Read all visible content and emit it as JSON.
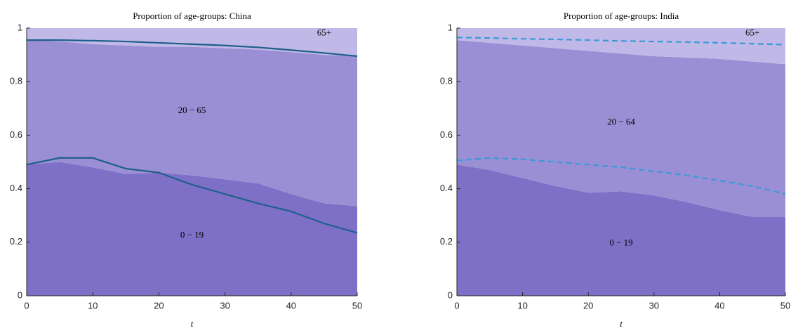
{
  "chart_data": [
    {
      "type": "stacked-area",
      "title": "Proportion of age-groups: China",
      "x_label": "t",
      "x": [
        0,
        5,
        10,
        15,
        20,
        25,
        30,
        35,
        40,
        45,
        50
      ],
      "series": [
        {
          "name": "0 − 19",
          "color": "#7e70c6",
          "values": [
            0.49,
            0.5,
            0.48,
            0.455,
            0.46,
            0.45,
            0.435,
            0.42,
            0.38,
            0.345,
            0.335
          ]
        },
        {
          "name": "20 − 65",
          "color": "#9a8fd4",
          "values": [
            0.465,
            0.45,
            0.46,
            0.48,
            0.47,
            0.48,
            0.49,
            0.5,
            0.53,
            0.555,
            0.56
          ]
        },
        {
          "name": "65+",
          "color": "#c0b8e6",
          "values": [
            0.045,
            0.05,
            0.06,
            0.065,
            0.07,
            0.07,
            0.075,
            0.08,
            0.09,
            0.1,
            0.105
          ]
        }
      ],
      "lines": [
        {
          "color": "#1f5f8b",
          "dashed": false,
          "values": [
            0.955,
            0.955,
            0.953,
            0.95,
            0.945,
            0.94,
            0.935,
            0.928,
            0.918,
            0.907,
            0.895
          ]
        },
        {
          "color": "#1f5f8b",
          "dashed": false,
          "values": [
            0.49,
            0.515,
            0.515,
            0.475,
            0.46,
            0.415,
            0.38,
            0.345,
            0.315,
            0.27,
            0.235
          ]
        }
      ],
      "xlim": [
        0,
        50
      ],
      "xticks": [
        0,
        10,
        20,
        30,
        40,
        50
      ],
      "ylim": [
        0,
        1
      ],
      "yticks": [
        0,
        0.2,
        0.4,
        0.6,
        0.8,
        1
      ]
    },
    {
      "type": "stacked-area",
      "title": "Proportion of age-groups: India",
      "x_label": "t",
      "x": [
        0,
        5,
        10,
        15,
        20,
        25,
        30,
        35,
        40,
        45,
        50
      ],
      "series": [
        {
          "name": "0 − 19",
          "color": "#7e70c6",
          "values": [
            0.49,
            0.47,
            0.44,
            0.41,
            0.385,
            0.39,
            0.375,
            0.35,
            0.32,
            0.295,
            0.295
          ]
        },
        {
          "name": "20 − 64",
          "color": "#9a8fd4",
          "values": [
            0.465,
            0.475,
            0.495,
            0.515,
            0.53,
            0.515,
            0.52,
            0.54,
            0.565,
            0.58,
            0.57
          ]
        },
        {
          "name": "65+",
          "color": "#c0b8e6",
          "values": [
            0.045,
            0.055,
            0.065,
            0.075,
            0.085,
            0.095,
            0.105,
            0.11,
            0.115,
            0.125,
            0.135
          ]
        }
      ],
      "lines": [
        {
          "color": "#3a9ad9",
          "dashed": true,
          "values": [
            0.965,
            0.963,
            0.96,
            0.958,
            0.955,
            0.952,
            0.95,
            0.948,
            0.945,
            0.942,
            0.938
          ]
        },
        {
          "color": "#3a9ad9",
          "dashed": true,
          "values": [
            0.505,
            0.515,
            0.51,
            0.5,
            0.49,
            0.48,
            0.465,
            0.45,
            0.43,
            0.41,
            0.38
          ]
        }
      ],
      "xlim": [
        0,
        50
      ],
      "xticks": [
        0,
        10,
        20,
        30,
        40,
        50
      ],
      "ylim": [
        0,
        1
      ],
      "yticks": [
        0,
        0.2,
        0.4,
        0.6,
        0.8,
        1
      ]
    }
  ]
}
